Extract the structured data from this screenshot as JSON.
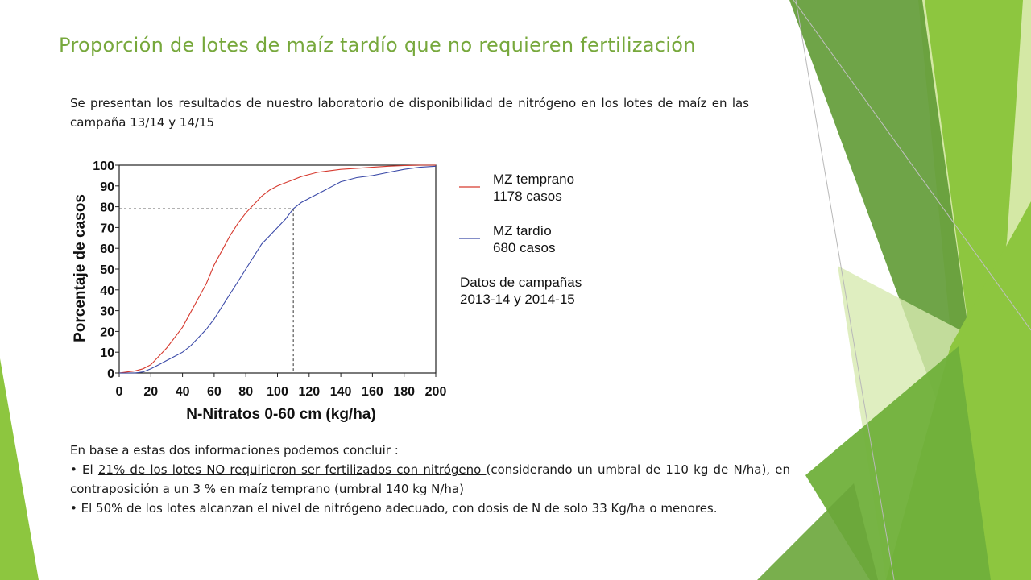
{
  "slide": {
    "title": "Proporción de lotes de maíz tardío que no requieren fertilización",
    "intro": "Se presentan los resultados de nuestro laboratorio de disponibilidad de nitrógeno en los lotes de maíz en las campaña 13/14 y 14/15",
    "conclusion": {
      "lead": "En base a estas dos informaciones podemos concluir :",
      "b1_pre": "• El ",
      "b1_underlined": "21% de los lotes NO requirieron ser fertilizados con nitrógeno ",
      "b1_post": "(considerando un umbral de 110 kg de N/ha), en contraposición a un 3 % en maíz temprano (umbral 140 kg N/ha)",
      "b2": "• El 50% de los lotes alcanzan el nivel de nitrógeno adecuado, con dosis de N de solo 33 Kg/ha o menores."
    },
    "colors": {
      "title": "#77a83c",
      "green_dark": "#5f9a34",
      "green_mid": "#8dc63f",
      "green_light": "#cfe59b"
    }
  },
  "chart_data": {
    "type": "line",
    "xlabel": "N-Nitratos 0-60 cm (kg/ha)",
    "ylabel": "Porcentaje de casos",
    "xlim": [
      0,
      200
    ],
    "ylim": [
      0,
      100
    ],
    "xticks": [
      0,
      20,
      40,
      60,
      80,
      100,
      120,
      140,
      160,
      180,
      200
    ],
    "yticks": [
      0,
      10,
      20,
      30,
      40,
      50,
      60,
      70,
      80,
      90,
      100
    ],
    "series": [
      {
        "name": "MZ temprano",
        "sub": "1178 casos",
        "color": "#d63a2f",
        "x": [
          0,
          5,
          10,
          15,
          20,
          25,
          30,
          35,
          40,
          45,
          50,
          55,
          60,
          65,
          70,
          75,
          80,
          85,
          90,
          95,
          100,
          105,
          110,
          115,
          120,
          125,
          130,
          140,
          150,
          160,
          170,
          180,
          190,
          200
        ],
        "y": [
          0,
          0.5,
          1,
          2,
          4,
          8,
          12,
          17,
          22,
          29,
          36,
          43,
          52,
          59,
          66,
          72,
          77,
          81,
          85,
          88,
          90,
          91.5,
          93,
          94.5,
          95.5,
          96.5,
          97,
          98,
          98.5,
          99,
          99.5,
          99.8,
          100,
          100
        ]
      },
      {
        "name": "MZ tardío",
        "sub": "680 casos",
        "color": "#3b4aa8",
        "x": [
          0,
          10,
          15,
          20,
          25,
          30,
          35,
          40,
          45,
          50,
          55,
          60,
          65,
          70,
          75,
          80,
          85,
          90,
          95,
          100,
          105,
          110,
          115,
          120,
          125,
          130,
          135,
          140,
          145,
          150,
          155,
          160,
          170,
          180,
          190,
          200
        ],
        "y": [
          0,
          0,
          0.5,
          2,
          4,
          6,
          8,
          10,
          13,
          17,
          21,
          26,
          32,
          38,
          44,
          50,
          56,
          62,
          66,
          70,
          74,
          79,
          82,
          84,
          86,
          88,
          90,
          92,
          93,
          94,
          94.5,
          95,
          96.5,
          98,
          99,
          99.5
        ]
      }
    ],
    "reference": {
      "x": 110,
      "y": 79
    },
    "legend_note": [
      "Datos de campañas",
      "2013-14 y 2014-15"
    ]
  }
}
